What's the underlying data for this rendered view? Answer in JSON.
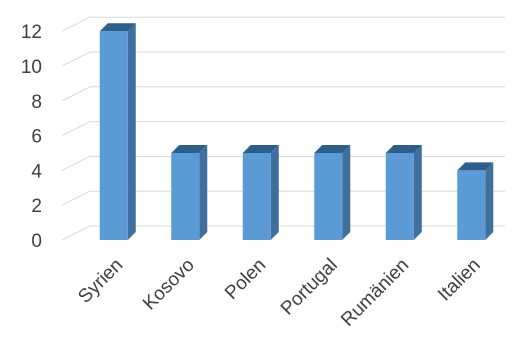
{
  "chart_data": {
    "type": "bar",
    "style": "3d-column",
    "categories": [
      "Syrien",
      "Kosovo",
      "Polen",
      "Portugal",
      "Rumänien",
      "Italien"
    ],
    "series": [
      {
        "values": [
          12,
          5,
          5,
          5,
          5,
          4
        ]
      }
    ],
    "yticks": [
      "0",
      "2",
      "4",
      "6",
      "8",
      "10",
      "12"
    ],
    "ylim": [
      0,
      12
    ],
    "grid": true,
    "legend": "none",
    "colors": {
      "bar_front": "#5b9bd5",
      "bar_side": "#3f6f9c",
      "bar_top": "#2e5f8c",
      "grid": "#d9d9d9",
      "text": "#404040"
    }
  }
}
